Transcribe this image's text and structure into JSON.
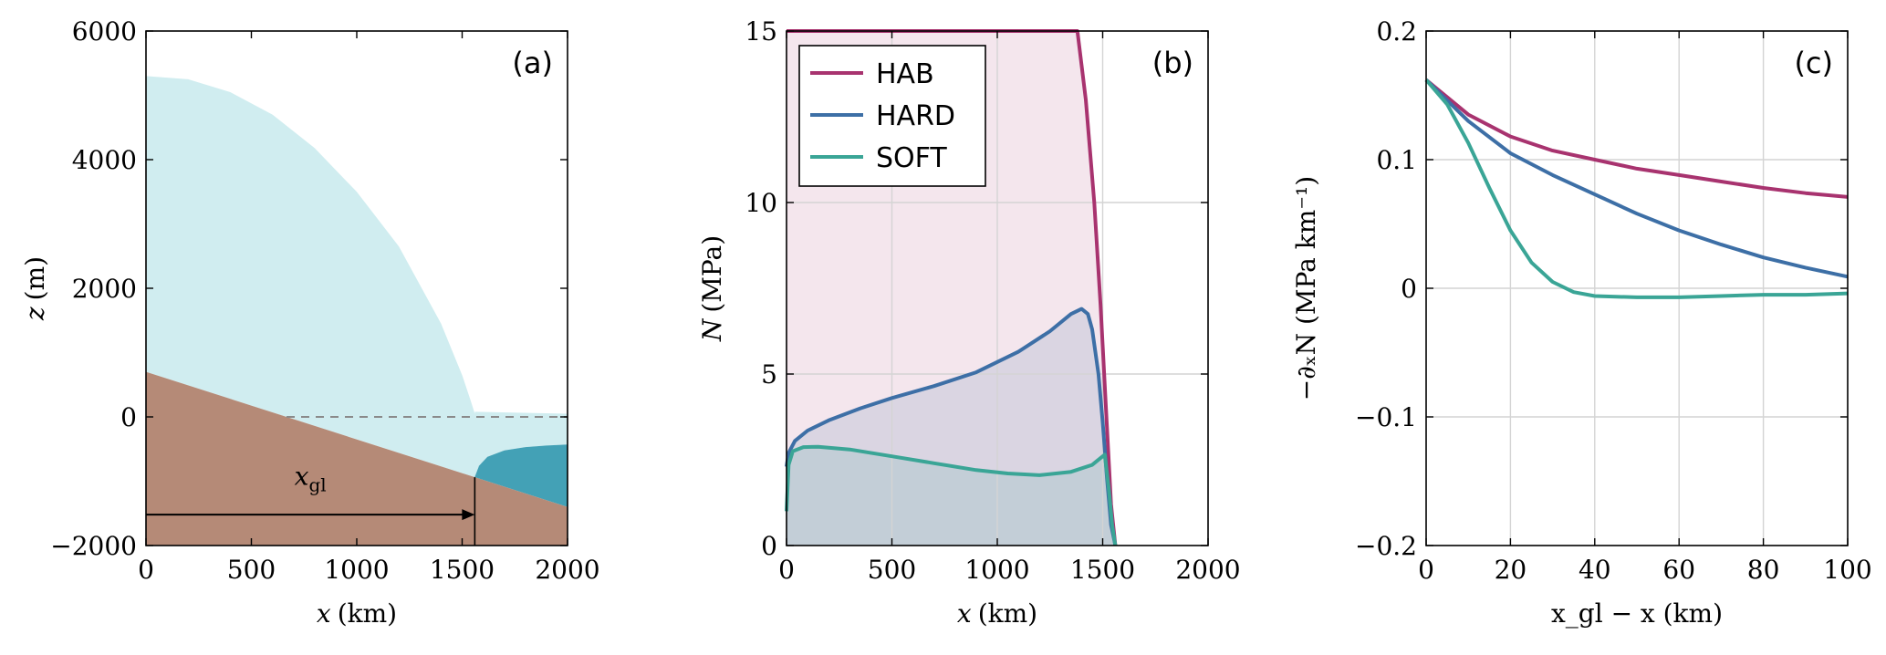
{
  "colors": {
    "ice": "#d0edf0",
    "bed": "#b58a77",
    "ocean": "#43a1b6",
    "sea_level_line": "#8a8a8a",
    "hab": "#a8336f",
    "hard": "#3d6fa6",
    "soft": "#3aa596",
    "grid": "#d4d4d4",
    "axis": "#000000"
  },
  "chart_data": [
    {
      "id": "a",
      "type": "area",
      "panel_label": "(a)",
      "xlabel_var": "x",
      "xlabel_unit": "(km)",
      "ylabel_var": "z",
      "ylabel_unit": "(m)",
      "xlim": [
        0,
        2000
      ],
      "ylim": [
        -2000,
        6000
      ],
      "xticks": [
        0,
        500,
        1000,
        1500,
        2000
      ],
      "yticks": [
        -2000,
        0,
        2000,
        4000,
        6000
      ],
      "xtick_labels": [
        "0",
        "500",
        "1000",
        "1500",
        "2000"
      ],
      "ytick_labels": [
        "−2000",
        "0",
        "2000",
        "4000",
        "6000"
      ],
      "grid": false,
      "annotation": {
        "text": "x",
        "subscript": "gl",
        "arrow_from_x": 0,
        "arrow_to_x": 1560,
        "arrow_y": -1520
      },
      "grounding_line_x": 1560,
      "bed": {
        "x": [
          0,
          2000
        ],
        "z": [
          700,
          -1400
        ]
      },
      "ice_surface": {
        "x": [
          0,
          200,
          400,
          600,
          800,
          1000,
          1200,
          1400,
          1500,
          1540,
          1560
        ],
        "z": [
          5300,
          5250,
          5050,
          4700,
          4180,
          3500,
          2650,
          1450,
          650,
          260,
          50
        ]
      },
      "shelf_top": {
        "x": [
          1560,
          2000
        ],
        "z": [
          80,
          50
        ]
      },
      "shelf_base": {
        "x": [
          1560,
          1580,
          1620,
          1700,
          1800,
          1900,
          2000
        ],
        "z": [
          -930,
          -760,
          -620,
          -520,
          -470,
          -445,
          -430
        ]
      },
      "sea_level": 0
    },
    {
      "id": "b",
      "type": "line",
      "panel_label": "(b)",
      "xlabel_var": "x",
      "xlabel_unit": "(km)",
      "ylabel_var": "N",
      "ylabel_unit": "(MPa)",
      "xlim": [
        0,
        2000
      ],
      "ylim": [
        0,
        15
      ],
      "xticks": [
        0,
        500,
        1000,
        1500,
        2000
      ],
      "yticks": [
        0,
        5,
        10,
        15
      ],
      "xtick_labels": [
        "0",
        "500",
        "1000",
        "1500",
        "2000"
      ],
      "ytick_labels": [
        "0",
        "5",
        "10",
        "15"
      ],
      "grid": true,
      "legend": {
        "position": "top-left"
      },
      "series": [
        {
          "name": "HAB",
          "color_key": "hab",
          "x": [
            0,
            1380,
            1420,
            1460,
            1490,
            1520,
            1540,
            1560
          ],
          "y": [
            15.0,
            15.0,
            13.0,
            10.0,
            7.0,
            3.5,
            1.2,
            0
          ]
        },
        {
          "name": "HARD",
          "color_key": "hard",
          "x": [
            0,
            10,
            40,
            100,
            200,
            350,
            500,
            700,
            900,
            1100,
            1250,
            1350,
            1400,
            1430,
            1450,
            1480,
            1500,
            1520,
            1540,
            1560
          ],
          "y": [
            2.3,
            2.7,
            3.05,
            3.35,
            3.65,
            4.0,
            4.3,
            4.65,
            5.05,
            5.65,
            6.25,
            6.75,
            6.9,
            6.75,
            6.3,
            5.0,
            3.6,
            2.0,
            0.6,
            0
          ]
        },
        {
          "name": "SOFT",
          "color_key": "soft",
          "x": [
            0,
            10,
            30,
            80,
            150,
            300,
            500,
            700,
            900,
            1050,
            1200,
            1350,
            1450,
            1490,
            1510,
            1530,
            1545,
            1560
          ],
          "y": [
            1.0,
            2.35,
            2.75,
            2.87,
            2.88,
            2.8,
            2.6,
            2.4,
            2.2,
            2.1,
            2.05,
            2.15,
            2.35,
            2.55,
            2.65,
            1.6,
            0.6,
            0
          ]
        }
      ]
    },
    {
      "id": "c",
      "type": "line",
      "panel_label": "(c)",
      "xlabel_text": "x_gl − x (km)",
      "ylabel_text": "−∂ₓN (MPa km⁻¹)",
      "xlim": [
        0,
        100
      ],
      "ylim": [
        -0.2,
        0.2
      ],
      "xticks": [
        0,
        20,
        40,
        60,
        80,
        100
      ],
      "yticks": [
        -0.2,
        -0.1,
        0,
        0.1,
        0.2
      ],
      "xtick_labels": [
        "0",
        "20",
        "40",
        "60",
        "80",
        "100"
      ],
      "ytick_labels": [
        "−0.2",
        "−0.1",
        "0",
        "0.1",
        "0.2"
      ],
      "grid": true,
      "series": [
        {
          "color_key": "hab",
          "x": [
            0,
            10,
            20,
            30,
            40,
            50,
            60,
            70,
            80,
            90,
            100
          ],
          "y": [
            0.162,
            0.135,
            0.118,
            0.107,
            0.1,
            0.093,
            0.088,
            0.083,
            0.078,
            0.074,
            0.071
          ]
        },
        {
          "color_key": "hard",
          "x": [
            0,
            10,
            20,
            30,
            40,
            50,
            60,
            70,
            80,
            90,
            100
          ],
          "y": [
            0.162,
            0.13,
            0.105,
            0.088,
            0.073,
            0.058,
            0.045,
            0.034,
            0.024,
            0.016,
            0.009
          ]
        },
        {
          "color_key": "soft",
          "x": [
            0,
            5,
            10,
            15,
            20,
            25,
            30,
            35,
            40,
            50,
            60,
            70,
            80,
            90,
            100
          ],
          "y": [
            0.162,
            0.143,
            0.113,
            0.078,
            0.045,
            0.02,
            0.005,
            -0.003,
            -0.006,
            -0.007,
            -0.007,
            -0.006,
            -0.005,
            -0.005,
            -0.004
          ]
        }
      ]
    }
  ]
}
